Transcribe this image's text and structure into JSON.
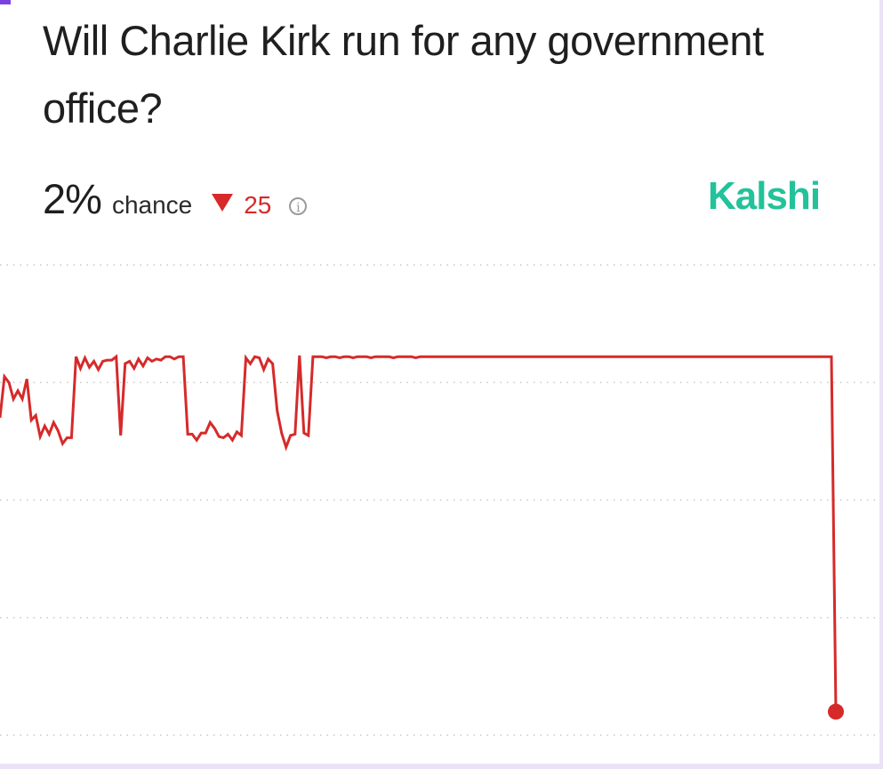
{
  "question": {
    "title": "Will Charlie Kirk run for any government office?"
  },
  "stats": {
    "percent": "2%",
    "label": "chance",
    "change_value": "25",
    "change_direction": "down",
    "change_color": "#d62a2a"
  },
  "brand": {
    "name": "Kalshi",
    "color": "#22c29a"
  },
  "chart_data": {
    "type": "line",
    "title": "",
    "xlabel": "",
    "ylabel": "",
    "ylim": [
      0,
      40
    ],
    "grid": true,
    "line_color": "#d62a2a",
    "x": [
      0,
      1,
      2,
      3,
      4,
      5,
      6,
      7,
      8,
      9,
      10,
      11,
      12,
      13,
      14,
      15,
      16,
      17,
      18,
      19,
      20,
      21,
      22,
      23,
      24,
      25,
      26,
      27,
      28,
      29,
      30,
      31,
      32,
      33,
      34,
      35,
      36,
      37,
      38,
      39,
      40,
      41,
      42,
      43,
      44,
      45,
      46,
      47,
      48,
      49,
      50,
      51,
      52,
      53,
      54,
      55,
      56,
      57,
      58,
      59,
      60,
      61,
      62,
      63,
      64,
      65,
      66,
      67,
      68,
      69,
      70,
      71,
      72,
      73,
      74,
      75,
      76,
      77,
      78,
      79,
      80,
      81,
      82,
      83,
      84,
      85,
      86,
      87,
      88,
      89,
      90,
      91,
      92,
      93,
      94,
      95,
      96,
      97,
      98,
      99,
      100,
      101,
      102,
      103,
      104,
      105,
      106,
      107,
      108,
      109,
      110,
      111,
      112,
      113,
      114,
      115,
      116,
      117,
      118,
      119,
      120,
      121,
      122,
      123,
      124,
      125,
      126,
      127,
      128,
      129,
      130,
      131,
      132,
      133,
      134,
      135,
      136,
      137,
      138,
      139,
      140,
      141,
      142,
      143,
      144,
      145,
      146,
      147,
      148,
      149,
      150,
      151,
      152,
      153,
      154,
      155,
      156,
      157,
      158,
      159,
      160,
      161,
      162,
      163,
      164,
      165,
      166,
      167,
      168,
      169,
      170,
      171,
      172,
      173,
      174,
      175,
      176,
      177,
      178,
      179,
      180,
      181,
      182,
      183,
      184,
      185,
      186,
      187
    ],
    "values": [
      27,
      30.5,
      30,
      28.6,
      29.3,
      28.6,
      30.3,
      26.8,
      27.2,
      25.4,
      26.3,
      25.6,
      26.6,
      25.9,
      24.8,
      25.3,
      25.3,
      32.2,
      31.2,
      32.1,
      31.3,
      31.8,
      31.1,
      31.8,
      31.9,
      31.9,
      32.2,
      25.5,
      31.6,
      31.8,
      31.2,
      32,
      31.4,
      32.1,
      31.8,
      32,
      31.9,
      32.2,
      32.2,
      32,
      32.2,
      32.2,
      25.6,
      25.6,
      25.1,
      25.7,
      25.7,
      26.6,
      26.1,
      25.4,
      25.3,
      25.6,
      25.1,
      25.8,
      25.5,
      32.1,
      31.6,
      32.2,
      32.1,
      31.1,
      32,
      31.6,
      27.6,
      25.7,
      24.5,
      25.5,
      25.6,
      32.3,
      25.7,
      25.5,
      32.2,
      32.2,
      32.2,
      32.1,
      32.2,
      32.2,
      32.1,
      32.2,
      32.2,
      32.1,
      32.2,
      32.2,
      32.2,
      32.1,
      32.2,
      32.2,
      32.2,
      32.2,
      32.1,
      32.2,
      32.2,
      32.2,
      32.2,
      32.1,
      32.2,
      32.2,
      32.2,
      32.2,
      32.2,
      32.2,
      32.2,
      32.2,
      32.2,
      32.2,
      32.2,
      32.2,
      32.2,
      32.2,
      32.2,
      32.2,
      32.2,
      32.2,
      32.2,
      32.2,
      32.2,
      32.2,
      32.2,
      32.2,
      32.2,
      32.2,
      32.2,
      32.2,
      32.2,
      32.2,
      32.2,
      32.2,
      32.2,
      32.2,
      32.2,
      32.2,
      32.2,
      32.2,
      32.2,
      32.2,
      32.2,
      32.2,
      32.2,
      32.2,
      32.2,
      32.2,
      32.2,
      32.2,
      32.2,
      32.2,
      32.2,
      32.2,
      32.2,
      32.2,
      32.2,
      32.2,
      32.2,
      32.2,
      32.2,
      32.2,
      32.2,
      32.2,
      32.2,
      32.2,
      32.2,
      32.2,
      32.2,
      32.2,
      32.2,
      32.2,
      32.2,
      32.2,
      32.2,
      32.2,
      32.2,
      32.2,
      32.2,
      32.2,
      32.2,
      32.2,
      32.2,
      32.2,
      32.2,
      32.2,
      32.2,
      32.2,
      32.2,
      32.2,
      32.2,
      32.2,
      32.2,
      32.2,
      32.2,
      2
    ]
  }
}
